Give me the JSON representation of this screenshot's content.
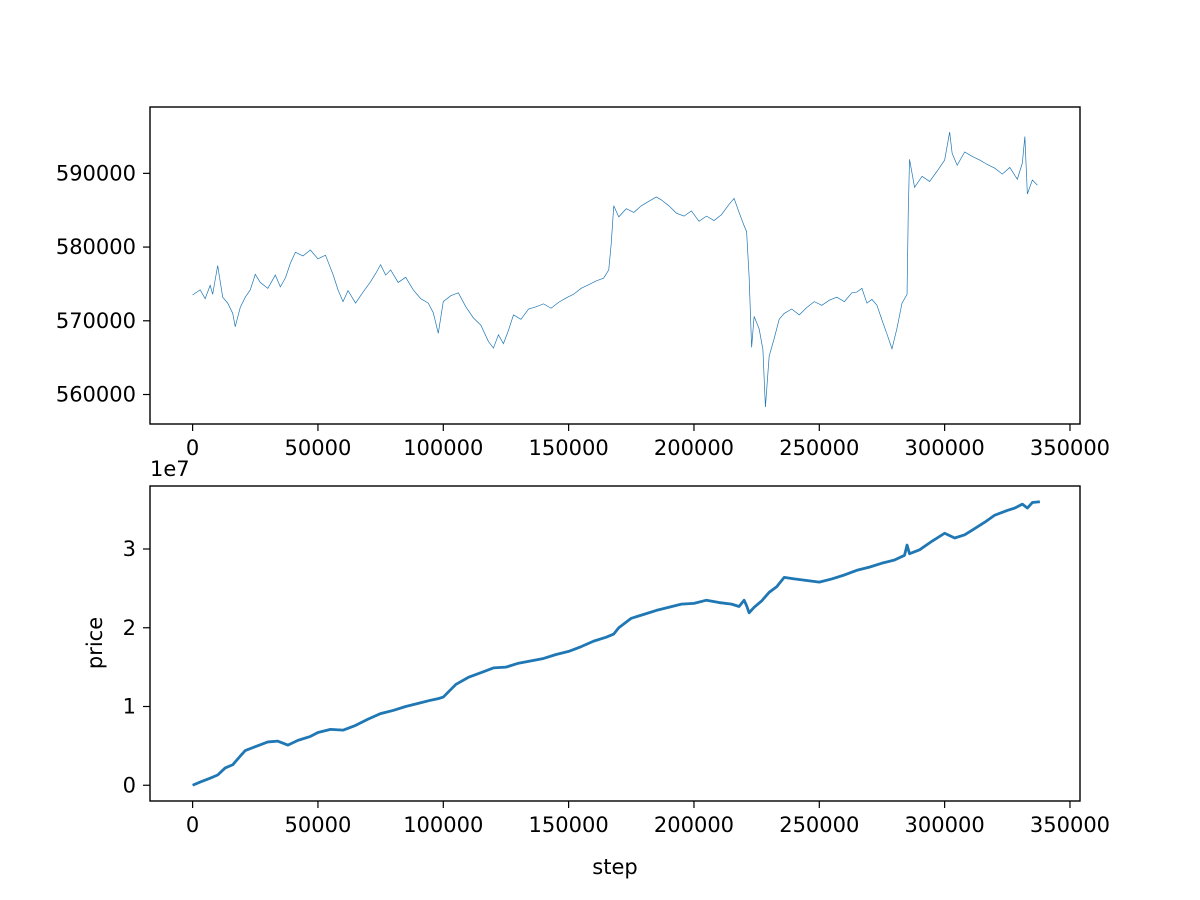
{
  "chart_data": [
    {
      "type": "line",
      "title": "",
      "xlabel": "",
      "ylabel": "",
      "xlim": [
        -17000,
        354000
      ],
      "ylim": [
        556000,
        599000
      ],
      "xticks": [
        0,
        50000,
        100000,
        150000,
        200000,
        250000,
        300000,
        350000
      ],
      "xtick_labels": [
        "0",
        "50000",
        "100000",
        "150000",
        "200000",
        "250000",
        "300000",
        "350000"
      ],
      "yticks": [
        560000,
        570000,
        580000,
        590000
      ],
      "ytick_labels": [
        "560000",
        "570000",
        "580000",
        "590000"
      ],
      "grid": false,
      "series": [
        {
          "color": "#1f77b4",
          "x": [
            0,
            3000,
            5000,
            7000,
            8000,
            10000,
            12000,
            14000,
            16000,
            17000,
            19000,
            21000,
            23000,
            25000,
            27000,
            30000,
            33000,
            35000,
            37000,
            39000,
            41000,
            44000,
            47000,
            50000,
            53000,
            56000,
            58000,
            60000,
            62000,
            65000,
            68000,
            71000,
            73000,
            75000,
            77000,
            79000,
            82000,
            85000,
            88000,
            91000,
            94000,
            96000,
            98000,
            100000,
            103000,
            106000,
            109000,
            112000,
            115000,
            118000,
            120000,
            122000,
            124000,
            126000,
            128000,
            131000,
            134000,
            137000,
            140000,
            143000,
            146000,
            149000,
            152000,
            155000,
            158000,
            161000,
            164000,
            166000,
            167000,
            168000,
            170000,
            173000,
            176000,
            179000,
            182000,
            185000,
            187000,
            190000,
            193000,
            196000,
            199000,
            202000,
            205000,
            208000,
            211000,
            214000,
            216000,
            218000,
            220000,
            221000,
            222000,
            223000,
            224000,
            226000,
            227500,
            228500,
            230000,
            232000,
            234000,
            236000,
            239000,
            242000,
            245000,
            248000,
            251000,
            254000,
            257000,
            260000,
            263000,
            265000,
            267000,
            269000,
            271000,
            273000,
            275000,
            277000,
            279000,
            281000,
            283000,
            285000,
            285500,
            286000,
            288000,
            291000,
            294000,
            297000,
            300000,
            302000,
            303000,
            305000,
            308000,
            311000,
            314000,
            317000,
            320000,
            323000,
            326000,
            329000,
            331000,
            332000,
            333000,
            335000,
            337000
          ],
          "y": [
            573500,
            574200,
            573000,
            574800,
            573600,
            577500,
            573200,
            572400,
            571000,
            569200,
            571800,
            573200,
            574200,
            576300,
            575200,
            574400,
            576200,
            574600,
            575800,
            577800,
            579300,
            578800,
            579600,
            578400,
            578900,
            576300,
            574200,
            572600,
            574100,
            572400,
            573900,
            575300,
            576400,
            577600,
            576200,
            576900,
            575200,
            575900,
            574200,
            573000,
            572400,
            571100,
            568300,
            572600,
            573400,
            573800,
            571900,
            570400,
            569400,
            567200,
            566300,
            568100,
            566900,
            568700,
            570800,
            570200,
            571600,
            571900,
            572300,
            571700,
            572500,
            573100,
            573600,
            574400,
            574900,
            575400,
            575800,
            576900,
            580500,
            585600,
            584100,
            585200,
            584700,
            585600,
            586200,
            586800,
            586400,
            585600,
            584600,
            584200,
            584900,
            583500,
            584200,
            583600,
            584400,
            585800,
            586600,
            584700,
            582900,
            582100,
            576000,
            566400,
            570600,
            568900,
            566100,
            558300,
            565200,
            567600,
            570200,
            571000,
            571600,
            570800,
            571800,
            572600,
            572100,
            572800,
            573200,
            572600,
            573800,
            573900,
            574400,
            572400,
            572900,
            572100,
            570100,
            568200,
            566200,
            569000,
            572400,
            573600,
            585000,
            591900,
            588100,
            589600,
            588900,
            590300,
            591800,
            595600,
            592700,
            591100,
            592900,
            592300,
            591800,
            591200,
            590700,
            589900,
            590800,
            589200,
            591400,
            595000,
            587200,
            589100,
            588400
          ]
        }
      ]
    },
    {
      "type": "line",
      "title": "",
      "xlabel": "step",
      "ylabel": "price",
      "offset_text": "1e7",
      "xlim": [
        -17000,
        354000
      ],
      "ylim": [
        -2000000,
        38000000
      ],
      "xticks": [
        0,
        50000,
        100000,
        150000,
        200000,
        250000,
        300000,
        350000
      ],
      "xtick_labels": [
        "0",
        "50000",
        "100000",
        "150000",
        "200000",
        "250000",
        "300000",
        "350000"
      ],
      "yticks": [
        0,
        10000000,
        20000000,
        30000000
      ],
      "ytick_labels": [
        "0",
        "1",
        "2",
        "3"
      ],
      "grid": false,
      "series": [
        {
          "color": "#1f77b4",
          "x": [
            0,
            3000,
            7000,
            10000,
            13000,
            16000,
            19000,
            21000,
            25000,
            30000,
            34000,
            38000,
            42000,
            47000,
            50000,
            55000,
            60000,
            65000,
            70000,
            75000,
            80000,
            85000,
            90000,
            95000,
            98000,
            100000,
            105000,
            110000,
            115000,
            120000,
            125000,
            130000,
            135000,
            140000,
            145000,
            150000,
            155000,
            160000,
            165000,
            168000,
            170000,
            175000,
            180000,
            185000,
            190000,
            195000,
            200000,
            205000,
            210000,
            215000,
            218000,
            220000,
            221000,
            222000,
            224000,
            227000,
            230000,
            233000,
            236000,
            240000,
            245000,
            250000,
            255000,
            260000,
            265000,
            270000,
            275000,
            280000,
            284000,
            285000,
            286000,
            290000,
            295000,
            300000,
            304000,
            308000,
            312000,
            316000,
            320000,
            325000,
            328000,
            331000,
            333000,
            335000,
            338000
          ],
          "y": [
            0,
            400000,
            900000,
            1300000,
            2200000,
            2600000,
            3700000,
            4400000,
            4900000,
            5500000,
            5600000,
            5100000,
            5700000,
            6200000,
            6700000,
            7100000,
            7000000,
            7600000,
            8400000,
            9100000,
            9500000,
            10000000,
            10400000,
            10800000,
            11000000,
            11200000,
            12800000,
            13700000,
            14300000,
            14900000,
            15000000,
            15500000,
            15800000,
            16100000,
            16600000,
            17000000,
            17600000,
            18300000,
            18800000,
            19200000,
            20000000,
            21200000,
            21700000,
            22200000,
            22600000,
            23000000,
            23100000,
            23500000,
            23200000,
            23000000,
            22700000,
            23500000,
            22800000,
            21900000,
            22600000,
            23400000,
            24500000,
            25200000,
            26400000,
            26200000,
            26000000,
            25800000,
            26200000,
            26700000,
            27300000,
            27700000,
            28200000,
            28600000,
            29200000,
            30500000,
            29400000,
            29900000,
            31000000,
            32000000,
            31400000,
            31800000,
            32600000,
            33400000,
            34300000,
            34900000,
            35200000,
            35700000,
            35200000,
            35900000,
            36000000
          ]
        }
      ]
    }
  ]
}
